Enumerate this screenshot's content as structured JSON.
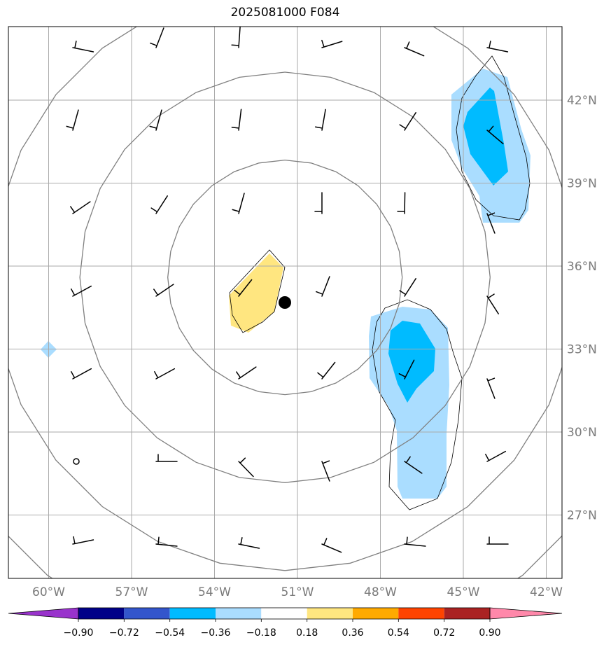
{
  "title": "2025081000 F084",
  "lon_ticks": [
    {
      "lon": -60,
      "label": "60°W"
    },
    {
      "lon": -57,
      "label": "57°W"
    },
    {
      "lon": -54,
      "label": "54°W"
    },
    {
      "lon": -51,
      "label": "51°W"
    },
    {
      "lon": -48,
      "label": "48°W"
    },
    {
      "lon": -45,
      "label": "45°W"
    },
    {
      "lon": -42,
      "label": "42°W"
    }
  ],
  "lat_ticks": [
    {
      "lat": 42,
      "label": "42°N"
    },
    {
      "lat": 39,
      "label": "39°N"
    },
    {
      "lat": 36,
      "label": "36°N"
    },
    {
      "lat": 33,
      "label": "33°N"
    },
    {
      "lat": 30,
      "label": "30°N"
    },
    {
      "lat": 27,
      "label": "27°N"
    }
  ],
  "storm_center": {
    "lon": -51.45,
    "lat": 34.25
  },
  "range_circles_deg": [
    4,
    7,
    10,
    13
  ],
  "colorbar": {
    "colors": [
      "#9933cc",
      "#000088",
      "#3355cc",
      "#00bbff",
      "#aaddff",
      "#ffffff",
      "#ffe680",
      "#ffaa00",
      "#ff4400",
      "#aa2222",
      "#ff88aa",
      "#ff88aa"
    ],
    "labels": [
      "−0.90",
      "−0.72",
      "−0.54",
      "−0.36",
      "−0.18",
      "0.18",
      "0.36",
      "0.54",
      "0.72",
      "0.90"
    ]
  },
  "colors": {
    "grid": "#aaaaaa",
    "circle": "#808080",
    "light_blue": "#aaddff",
    "blue": "#00bbff",
    "yellow": "#ffe680"
  }
}
